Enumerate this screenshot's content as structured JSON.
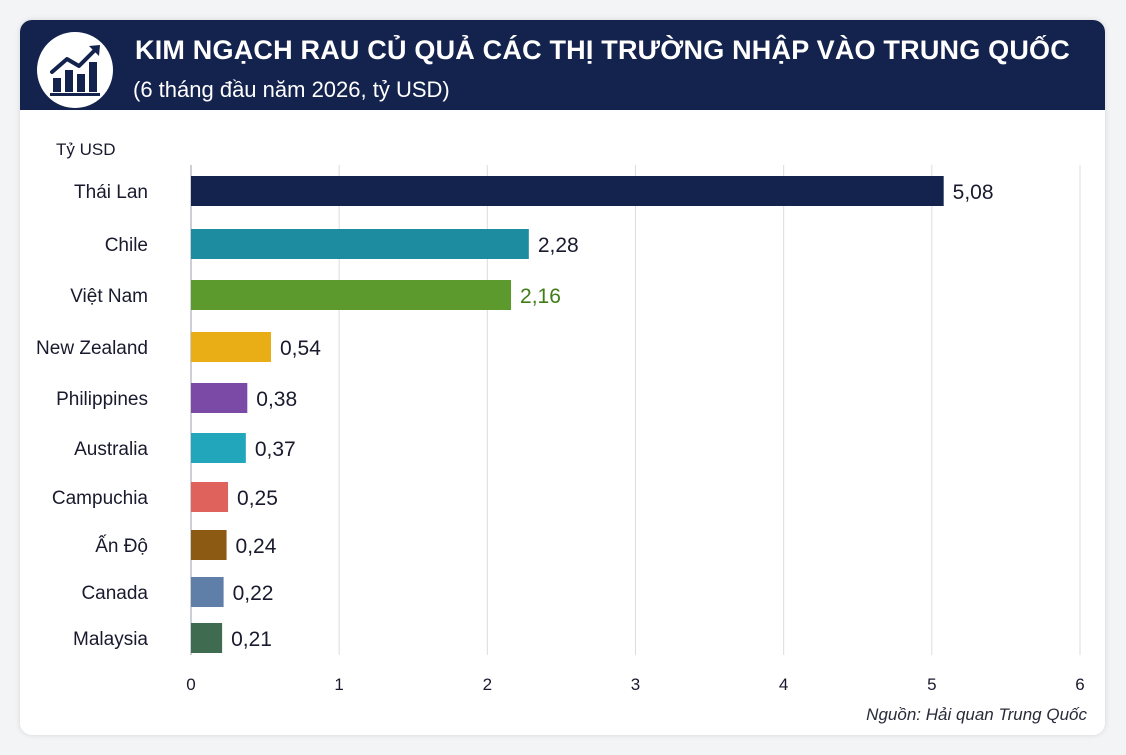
{
  "header": {
    "title": "KIM NGẠCH RAU CỦ QUẢ CÁC THỊ TRƯỜNG NHẬP VÀO TRUNG QUỐC",
    "subtitle": "(6 tháng đầu năm 2026, tỷ USD)",
    "icon": "growth-chart-icon"
  },
  "chart_data": {
    "type": "bar",
    "orientation": "horizontal",
    "title": "KIM NGẠCH RAU CỦ QUẢ CÁC THỊ TRƯỜNG NHẬP VÀO TRUNG QUỐC",
    "subtitle": "(6 tháng đầu năm 2026, tỷ USD)",
    "unit_label": "Tỷ USD",
    "categories": [
      "Thái Lan",
      "Chile",
      "Việt Nam",
      "New Zealand",
      "Philippines",
      "Australia",
      "Campuchia",
      "Ấn Độ",
      "Canada",
      "Malaysia"
    ],
    "values": [
      5.08,
      2.28,
      2.16,
      0.54,
      0.38,
      0.37,
      0.25,
      0.24,
      0.22,
      0.21
    ],
    "value_labels": [
      "5,08",
      "2,28",
      "2,16",
      "0,54",
      "0,38",
      "0,37",
      "0,25",
      "0,24",
      "0,22",
      "0,21"
    ],
    "colors": [
      "#14234d",
      "#1e8ca0",
      "#5c9a2e",
      "#e9ad16",
      "#7a4aa6",
      "#22a6bb",
      "#e0625c",
      "#8c5a12",
      "#5f7fa8",
      "#3f6b50"
    ],
    "label_colors": [
      "#1a1a2e",
      "#1a1a2e",
      "#3f7d17",
      "#1a1a2e",
      "#1a1a2e",
      "#1a1a2e",
      "#1a1a2e",
      "#1a1a2e",
      "#1a1a2e",
      "#1a1a2e"
    ],
    "xticks": [
      "0",
      "1",
      "2",
      "3",
      "4",
      "5",
      "6"
    ],
    "xlim": [
      0,
      6
    ],
    "grid": "vertical",
    "source": "Nguồn: Hải quan Trung Quốc"
  }
}
